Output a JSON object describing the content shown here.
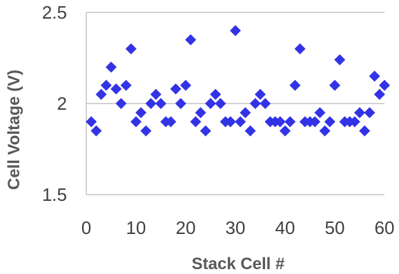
{
  "chart_data": {
    "type": "scatter",
    "title": "",
    "xlabel": "Stack Cell #",
    "ylabel": "Cell Voltage (V)",
    "xlim": [
      0,
      60
    ],
    "ylim": [
      1.5,
      2.5
    ],
    "x_ticks": [
      "0",
      "10",
      "20",
      "30",
      "40",
      "50",
      "60"
    ],
    "y_ticks": [
      "1.5",
      "2",
      "2.5"
    ],
    "grid": "horizontal",
    "legend": "none",
    "marker": "diamond",
    "marker_color": "#3333e6",
    "grid_color": "#a6a6a6",
    "series": [
      {
        "x": [
          1,
          2,
          3,
          4,
          5,
          6,
          7,
          8,
          9,
          10,
          11,
          12,
          13,
          14,
          15,
          16,
          17,
          18,
          19,
          20,
          21,
          22,
          23,
          24,
          25,
          26,
          27,
          28,
          29,
          30,
          31,
          32,
          33,
          34,
          35,
          36,
          37,
          38,
          39,
          40,
          41,
          42,
          43,
          44,
          45,
          46,
          47,
          48,
          49,
          50,
          51,
          52,
          53,
          54,
          55,
          56,
          57,
          58,
          59,
          60
        ],
        "y": [
          1.9,
          1.85,
          2.05,
          2.1,
          2.2,
          2.08,
          2.0,
          2.1,
          2.3,
          1.9,
          1.95,
          1.85,
          2.0,
          2.05,
          2.0,
          1.9,
          1.9,
          2.08,
          2.0,
          2.1,
          2.35,
          1.9,
          1.95,
          1.85,
          2.0,
          2.05,
          2.0,
          1.9,
          1.9,
          2.4,
          1.9,
          1.95,
          1.85,
          2.0,
          2.05,
          2.0,
          1.9,
          1.9,
          1.9,
          1.85,
          1.9,
          2.1,
          2.3,
          1.9,
          1.9,
          1.9,
          1.95,
          1.85,
          1.9,
          2.1,
          2.24,
          1.9,
          1.9,
          1.9,
          1.95,
          1.85,
          1.95,
          2.15,
          2.05,
          2.1
        ]
      }
    ]
  }
}
